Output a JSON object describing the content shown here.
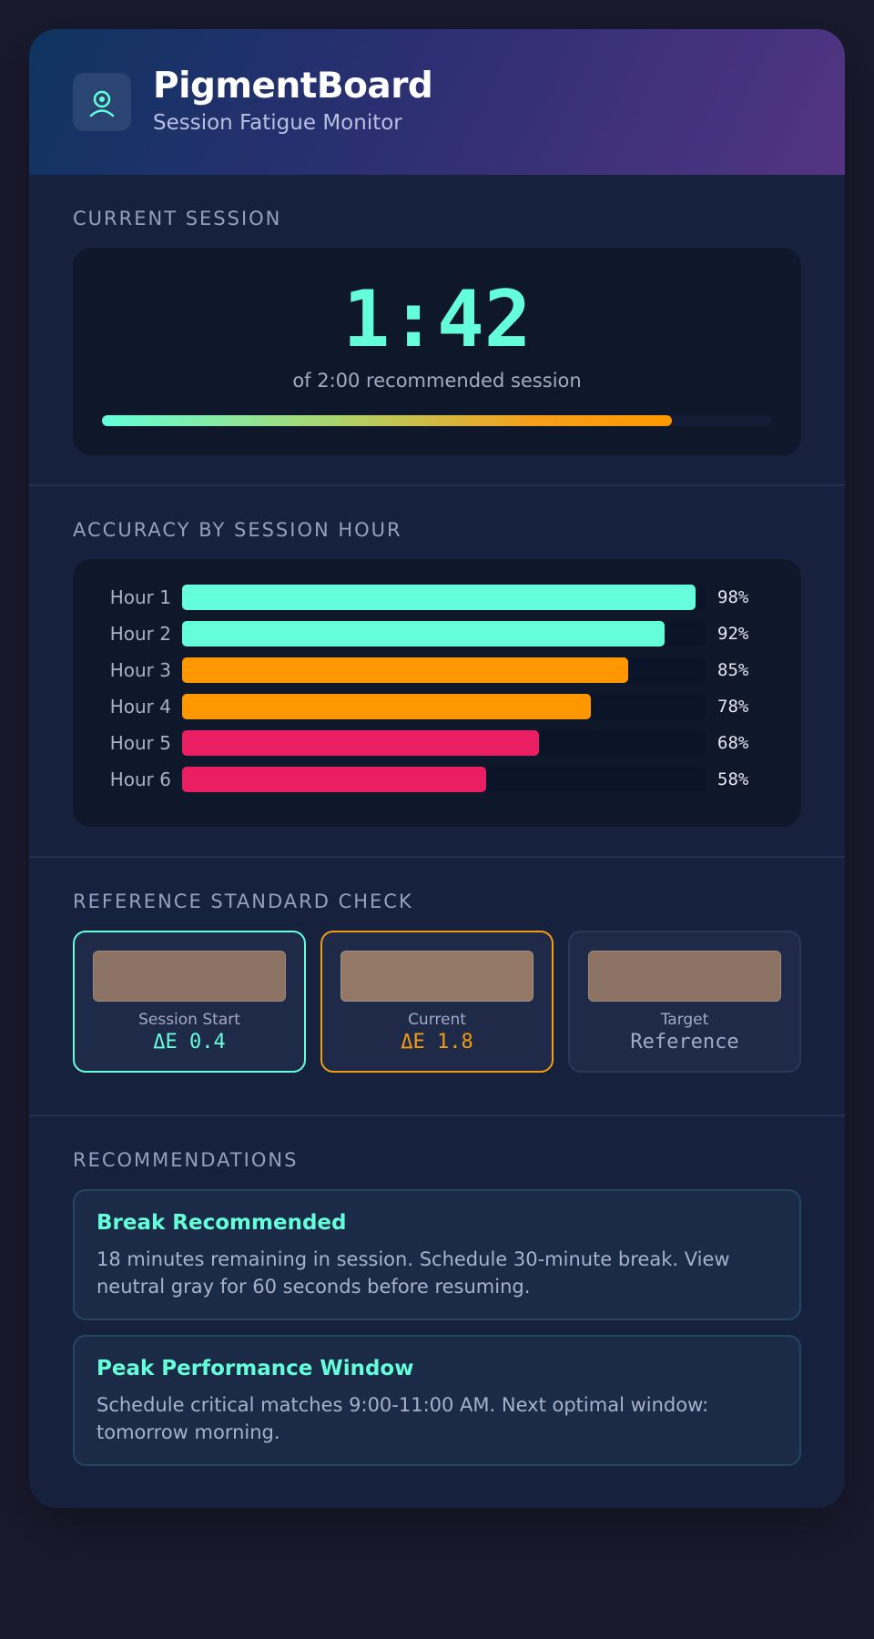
{
  "app": {
    "title": "PigmentBoard",
    "subtitle": "Session Fatigue Monitor",
    "logo_icon": "eye-icon",
    "accent": "#64ffda"
  },
  "current_session": {
    "label": "CURRENT SESSION",
    "elapsed": "1:42",
    "caption": "of 2:00 recommended session",
    "progress_fraction": 0.85
  },
  "accuracy": {
    "label": "ACCURACY BY SESSION HOUR",
    "rows": [
      {
        "label": "Hour 1",
        "value": 98,
        "display": "98%",
        "color": "#64ffda"
      },
      {
        "label": "Hour 2",
        "value": 92,
        "display": "92%",
        "color": "#64ffda"
      },
      {
        "label": "Hour 3",
        "value": 85,
        "display": "85%",
        "color": "#ff9800"
      },
      {
        "label": "Hour 4",
        "value": 78,
        "display": "78%",
        "color": "#ff9800"
      },
      {
        "label": "Hour 5",
        "value": 68,
        "display": "68%",
        "color": "#e91e63"
      },
      {
        "label": "Hour 6",
        "value": 58,
        "display": "58%",
        "color": "#e91e63"
      }
    ]
  },
  "reference_check": {
    "label": "REFERENCE STANDARD CHECK",
    "cards": [
      {
        "name": "Session Start",
        "value": "ΔE 0.4",
        "swatch": "#8b7262",
        "value_color": "#64ffda"
      },
      {
        "name": "Current",
        "value": "ΔE 1.8",
        "swatch": "#937868",
        "value_color": "#f39c12"
      },
      {
        "name": "Target",
        "value": "Reference",
        "swatch": "#8b7262",
        "value_color": "#a2abc4"
      }
    ]
  },
  "recommendations": {
    "label": "RECOMMENDATIONS",
    "items": [
      {
        "title": "Break Recommended",
        "body": "18 minutes remaining in session. Schedule 30-minute break. View neutral gray for 60 seconds before resuming."
      },
      {
        "title": "Peak Performance Window",
        "body": "Schedule critical matches 9:00-11:00 AM. Next optimal window: tomorrow morning."
      }
    ]
  }
}
